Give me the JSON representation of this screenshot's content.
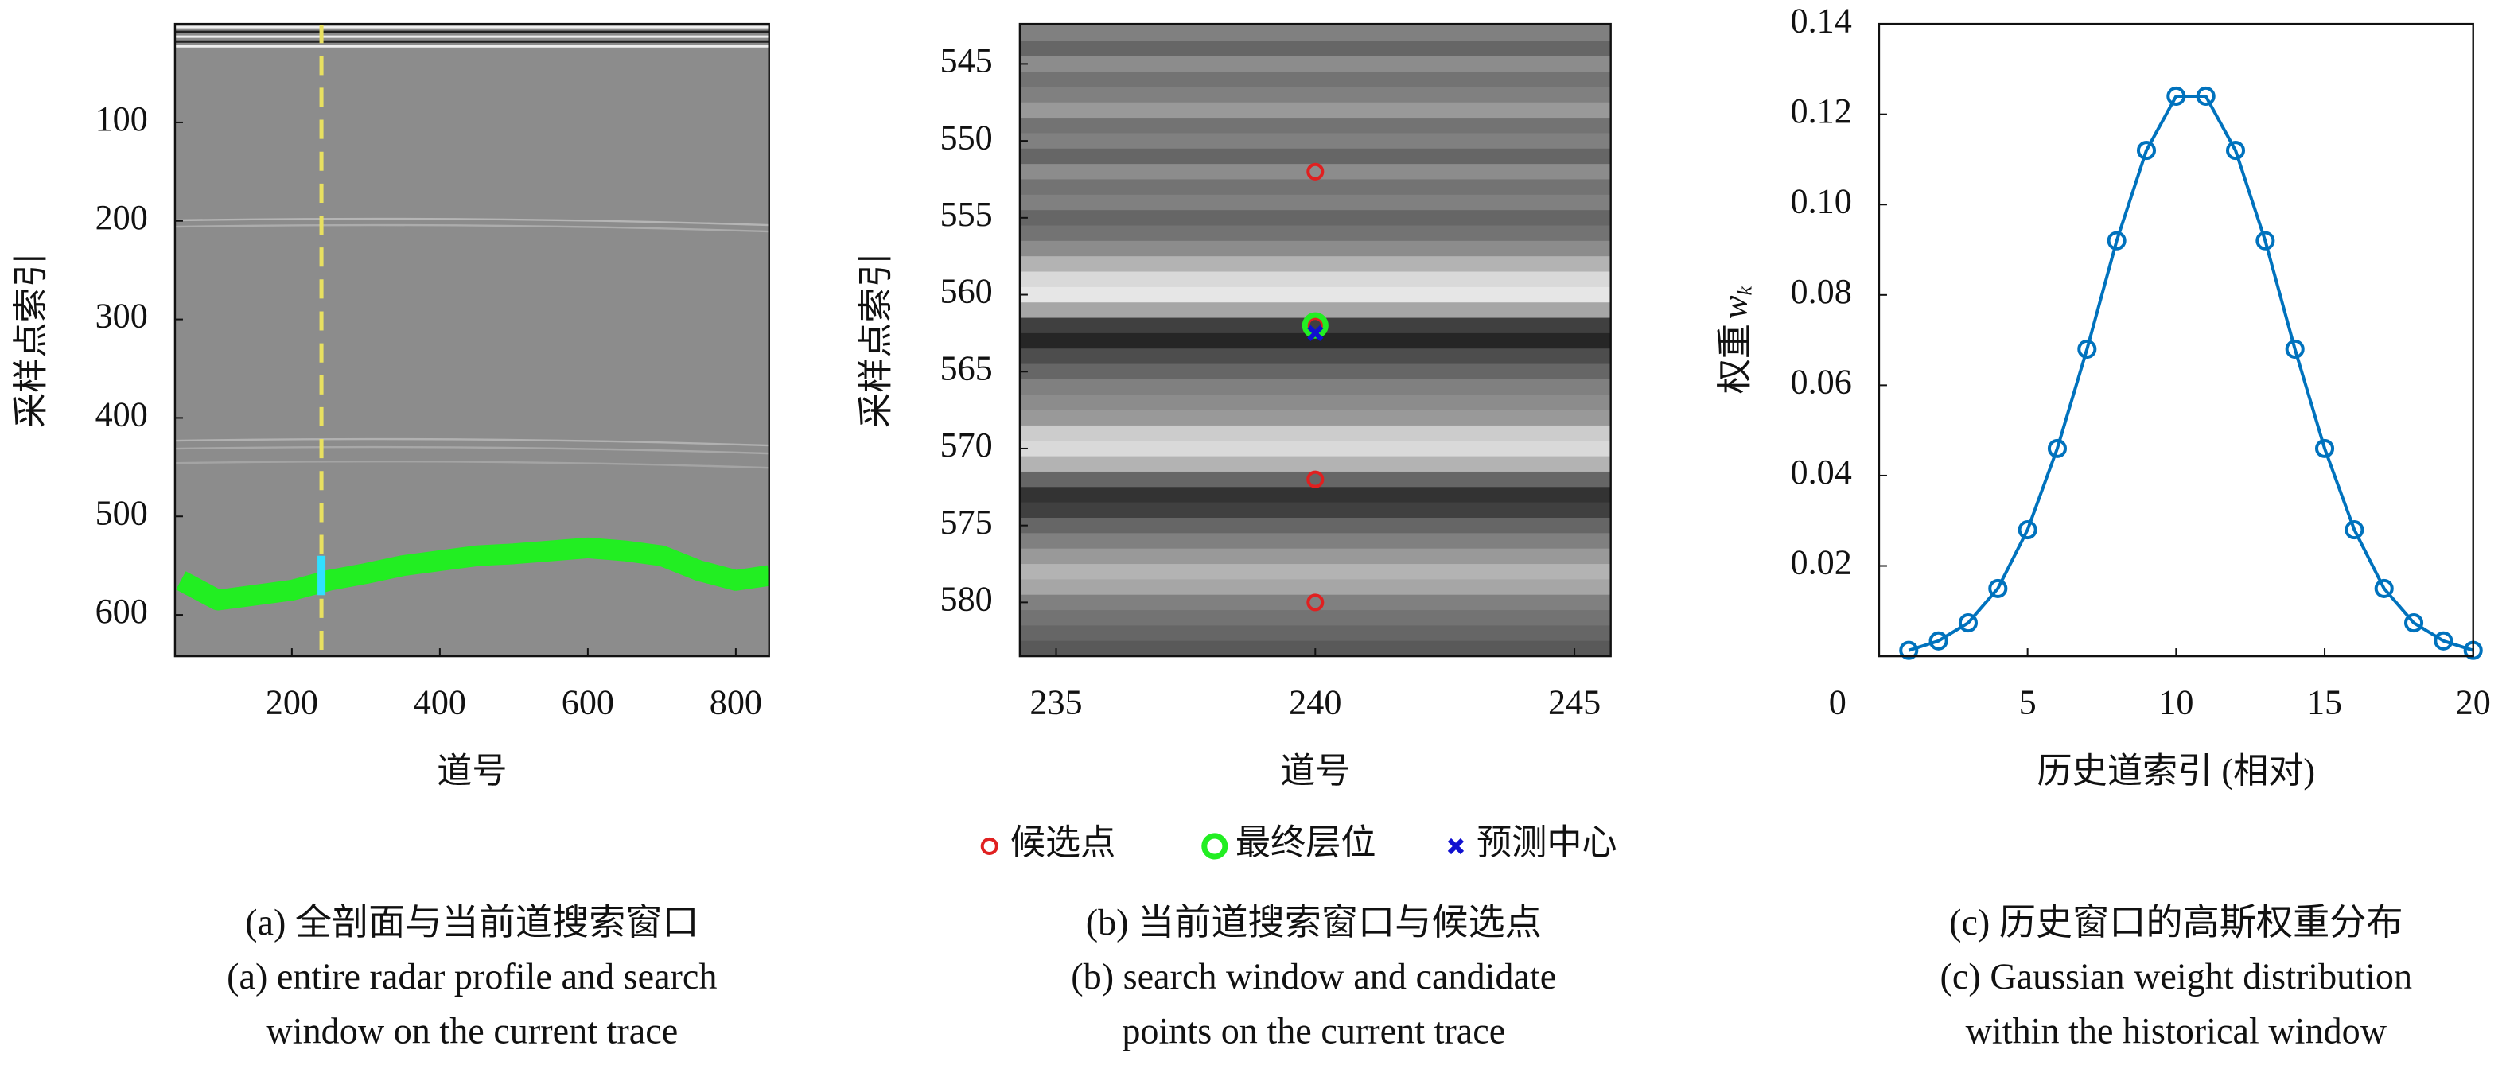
{
  "chart_data": [
    {
      "type": "image",
      "xlabel": "道号",
      "ylabel": "采样点索引",
      "caption": [
        "(a) 全剖面与当前道搜索窗口",
        "(a) entire radar profile and search",
        "window on the current trace"
      ],
      "xlim": [
        42,
        845
      ],
      "ylim": [
        642,
        0
      ],
      "xticks": [
        200,
        400,
        600,
        800
      ],
      "yticks": [
        100,
        200,
        300,
        400,
        500,
        600
      ],
      "x": [
        50,
        100,
        150,
        200,
        250,
        300,
        350,
        400,
        450,
        500,
        550,
        600,
        650,
        700,
        750,
        800,
        845
      ],
      "series": [
        {
          "color": "#22ee22",
          "values": [
            565,
            585,
            580,
            575,
            565,
            558,
            550,
            545,
            540,
            538,
            535,
            532,
            535,
            540,
            555,
            565,
            560
          ]
        }
      ],
      "current_trace": 240,
      "search_window": [
        540,
        580
      ]
    },
    {
      "type": "heatmap",
      "xlabel": "道号",
      "ylabel": "采样点索引",
      "caption": [
        "(b) 当前道搜索窗口与候选点",
        "(b) search window and candidate",
        "points on the current trace"
      ],
      "xlim": [
        234.3,
        245.7
      ],
      "ylim": [
        583.5,
        542.4
      ],
      "xticks": [
        235,
        240,
        245
      ],
      "yticks": [
        545,
        550,
        555,
        560,
        565,
        570,
        575,
        580
      ],
      "rows": [
        542,
        543,
        544,
        545,
        546,
        547,
        548,
        549,
        550,
        551,
        552,
        553,
        554,
        555,
        556,
        557,
        558,
        559,
        560,
        561,
        562,
        563,
        564,
        565,
        566,
        567,
        568,
        569,
        570,
        571,
        572,
        573,
        574,
        575,
        576,
        577,
        578,
        579,
        580,
        581,
        582,
        583
      ],
      "values": [
        0.45,
        0.5,
        0.4,
        0.55,
        0.45,
        0.5,
        0.6,
        0.45,
        0.5,
        0.4,
        0.55,
        0.45,
        0.5,
        0.4,
        0.45,
        0.55,
        0.7,
        0.85,
        0.9,
        0.65,
        0.25,
        0.15,
        0.3,
        0.4,
        0.5,
        0.55,
        0.6,
        0.8,
        0.85,
        0.7,
        0.4,
        0.2,
        0.25,
        0.4,
        0.5,
        0.6,
        0.7,
        0.65,
        0.5,
        0.45,
        0.4,
        0.35
      ],
      "series": [
        {
          "name": "候选点",
          "color": "#e02020",
          "marker": "circle",
          "x": [
            240,
            240,
            240,
            240
          ],
          "values": [
            552,
            562,
            572,
            580
          ]
        },
        {
          "name": "最终层位",
          "color": "#22ee22",
          "marker": "ring",
          "x": [
            240
          ],
          "values": [
            562
          ]
        },
        {
          "name": "预测中心",
          "color": "#1010d0",
          "marker": "cross",
          "x": [
            240
          ],
          "values": [
            562.5
          ]
        }
      ]
    },
    {
      "type": "line",
      "xlabel": "历史道索引 (相对)",
      "ylabel": [
        "权重",
        "w",
        "k"
      ],
      "caption": [
        "(c) 历史窗口的高斯权重分布",
        "(c) Gaussian weight distribution",
        "within the historical window"
      ],
      "xlim": [
        0,
        20
      ],
      "ylim": [
        0,
        0.14
      ],
      "xticks": [
        0,
        5,
        10,
        15,
        20
      ],
      "yticks": [
        0.02,
        0.04,
        0.06,
        0.08,
        {
          "value": 0.1,
          "label": "0.10"
        },
        0.12,
        0.14
      ],
      "x": [
        1,
        2,
        3,
        4,
        5,
        6,
        7,
        8,
        9,
        10,
        11,
        12,
        13,
        14,
        15,
        16,
        17,
        18,
        19,
        20
      ],
      "series": [
        {
          "color": "#0072bd",
          "values": [
            0.0013,
            0.0034,
            0.0074,
            0.015,
            0.028,
            0.046,
            0.068,
            0.092,
            0.112,
            0.124,
            0.124,
            0.112,
            0.092,
            0.068,
            0.046,
            0.028,
            0.015,
            0.0074,
            0.0034,
            0.0013
          ]
        }
      ]
    }
  ]
}
